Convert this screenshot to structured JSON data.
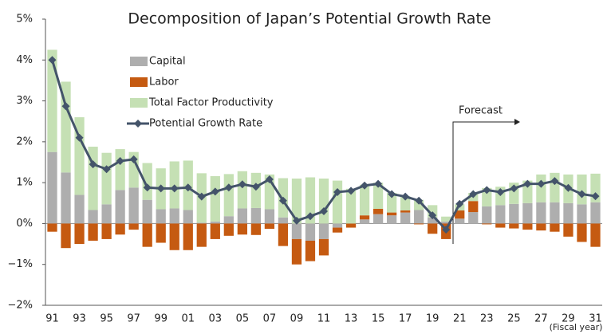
{
  "chart_data": {
    "type": "stacked_bar_line",
    "title": "Decomposition of Japan’s Potential Growth Rate",
    "x_label": "(Fiscal year)",
    "annotation": "Forecast",
    "categories": [
      "91",
      null,
      "93",
      null,
      "95",
      null,
      "97",
      null,
      "99",
      null,
      "01",
      null,
      "03",
      null,
      "05",
      null,
      "07",
      null,
      "09",
      null,
      "11",
      null,
      "13",
      null,
      "15",
      null,
      "17",
      null,
      "19",
      null,
      "21",
      null,
      "23",
      null,
      "25",
      null,
      "27",
      null,
      "29",
      null,
      "31"
    ],
    "ylim": [
      -2,
      5
    ],
    "yticks": [
      {
        "value": -2,
        "label": "−2%"
      },
      {
        "value": -1,
        "label": "−1%"
      },
      {
        "value": 0,
        "label": "0%"
      },
      {
        "value": 1,
        "label": "1%"
      },
      {
        "value": 2,
        "label": "2%"
      },
      {
        "value": 3,
        "label": "3%"
      },
      {
        "value": 4,
        "label": "4%"
      },
      {
        "value": 5,
        "label": "5%"
      }
    ],
    "series": [
      {
        "name": "Capital",
        "kind": "bar",
        "color": "#aeaeae",
        "values": [
          1.75,
          1.25,
          0.7,
          0.33,
          0.47,
          0.82,
          0.88,
          0.58,
          0.35,
          0.37,
          0.33,
          0.02,
          0.05,
          0.18,
          0.37,
          0.38,
          0.35,
          0.15,
          -0.38,
          -0.42,
          -0.38,
          -0.1,
          0.0,
          0.1,
          0.23,
          0.2,
          0.27,
          0.33,
          0.15,
          0.05,
          0.12,
          0.28,
          0.42,
          0.45,
          0.48,
          0.5,
          0.52,
          0.52,
          0.5,
          0.47,
          0.52
        ]
      },
      {
        "name": "Labor",
        "kind": "bar",
        "color": "#c55a11",
        "values": [
          -0.2,
          -0.6,
          -0.5,
          -0.42,
          -0.38,
          -0.27,
          -0.15,
          -0.57,
          -0.47,
          -0.65,
          -0.65,
          -0.57,
          -0.38,
          -0.3,
          -0.27,
          -0.28,
          -0.13,
          -0.55,
          -0.62,
          -0.5,
          -0.4,
          -0.12,
          -0.1,
          0.1,
          0.13,
          0.07,
          0.05,
          -0.02,
          -0.25,
          -0.38,
          0.2,
          0.27,
          -0.02,
          -0.1,
          -0.12,
          -0.15,
          -0.17,
          -0.2,
          -0.32,
          -0.45,
          -0.57
        ]
      },
      {
        "name": "Total Factor Productivity",
        "kind": "bar",
        "color": "#c5e0b4",
        "values": [
          2.5,
          2.22,
          1.9,
          1.55,
          1.26,
          1.0,
          0.87,
          0.9,
          1.0,
          1.15,
          1.21,
          1.21,
          1.11,
          1.03,
          0.91,
          0.86,
          0.85,
          0.96,
          1.1,
          1.13,
          1.1,
          1.05,
          0.85,
          0.75,
          0.64,
          0.48,
          0.35,
          0.25,
          0.3,
          0.12,
          0.15,
          0.2,
          0.45,
          0.45,
          0.52,
          0.55,
          0.68,
          0.72,
          0.7,
          0.73,
          0.7
        ]
      },
      {
        "name": "Potential Growth Rate",
        "kind": "line",
        "color": "#44546a",
        "values": [
          4.0,
          2.87,
          2.1,
          1.45,
          1.33,
          1.53,
          1.57,
          0.88,
          0.86,
          0.86,
          0.88,
          0.66,
          0.78,
          0.88,
          0.96,
          0.9,
          1.08,
          0.56,
          0.07,
          0.18,
          0.3,
          0.77,
          0.8,
          0.93,
          0.97,
          0.72,
          0.66,
          0.56,
          0.2,
          -0.15,
          0.48,
          0.72,
          0.82,
          0.77,
          0.86,
          0.97,
          0.97,
          1.04,
          0.87,
          0.72,
          0.67
        ]
      }
    ]
  }
}
